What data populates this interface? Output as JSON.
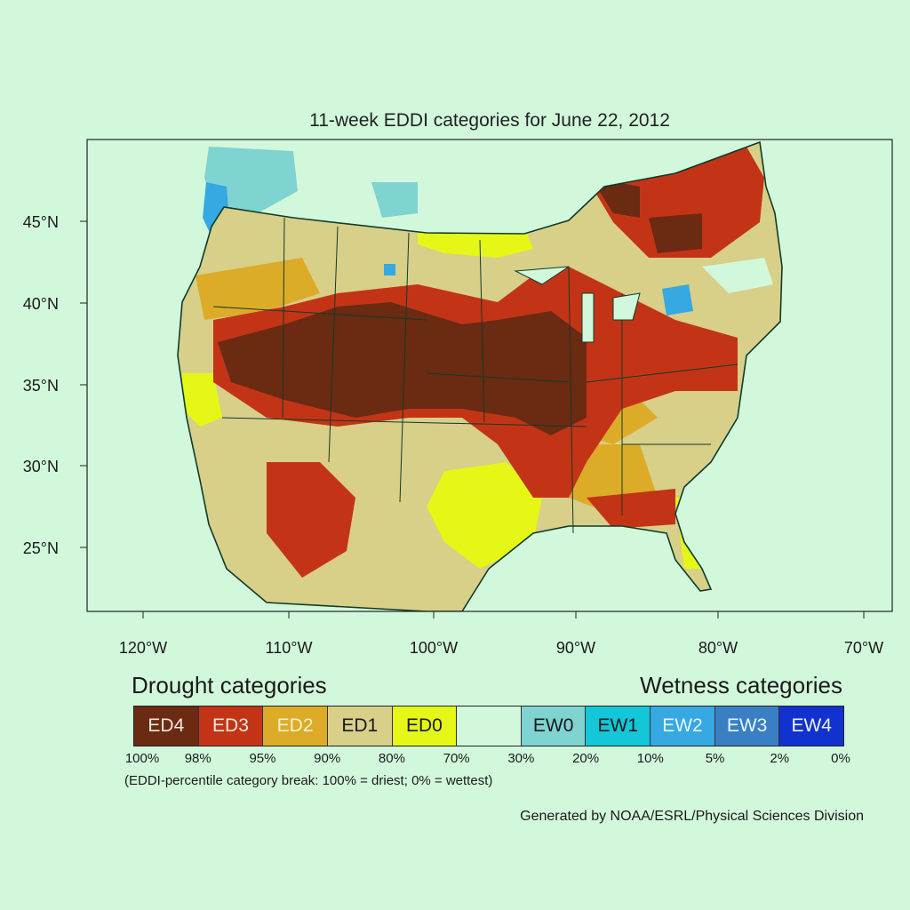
{
  "title": "11-week EDDI categories for June 22, 2012",
  "lat_ticks": [
    "45°N",
    "40°N",
    "35°N",
    "30°N",
    "25°N"
  ],
  "lon_ticks": [
    "120°W",
    "110°W",
    "100°W",
    "90°W",
    "80°W",
    "70°W"
  ],
  "legend": {
    "drought_title": "Drought categories",
    "wetness_title": "Wetness categories",
    "categories": [
      {
        "label": "ED4",
        "color": "#6b2a12",
        "text_color": "#f3e6dc"
      },
      {
        "label": "ED3",
        "color": "#c33416",
        "text_color": "#f3e6dc"
      },
      {
        "label": "ED2",
        "color": "#dcac28",
        "text_color": "#f7efd2"
      },
      {
        "label": "ED1",
        "color": "#d8cf89",
        "text_color": "#1a1a1a"
      },
      {
        "label": "ED0",
        "color": "#e5f716",
        "text_color": "#1a1a1a"
      },
      {
        "label": "",
        "color": "#d2f8dc",
        "text_color": "#1a1a1a"
      },
      {
        "label": "EW0",
        "color": "#7fd3d0",
        "text_color": "#1a1a1a"
      },
      {
        "label": "EW1",
        "color": "#13c6d8",
        "text_color": "#1a1a1a"
      },
      {
        "label": "EW2",
        "color": "#36a8e2",
        "text_color": "#e8f6ff"
      },
      {
        "label": "EW3",
        "color": "#3a7fc4",
        "text_color": "#e8f6ff"
      },
      {
        "label": "EW4",
        "color": "#1232cf",
        "text_color": "#e8f6ff"
      }
    ],
    "percent_breaks": [
      "100%",
      "98%",
      "95%",
      "90%",
      "80%",
      "70%",
      "30%",
      "20%",
      "10%",
      "5%",
      "2%",
      "0%"
    ],
    "note": "(EDDI-percentile category break: 100% = driest; 0% = wettest)",
    "credit": "Generated by NOAA/ESRL/Physical Sciences Division"
  }
}
